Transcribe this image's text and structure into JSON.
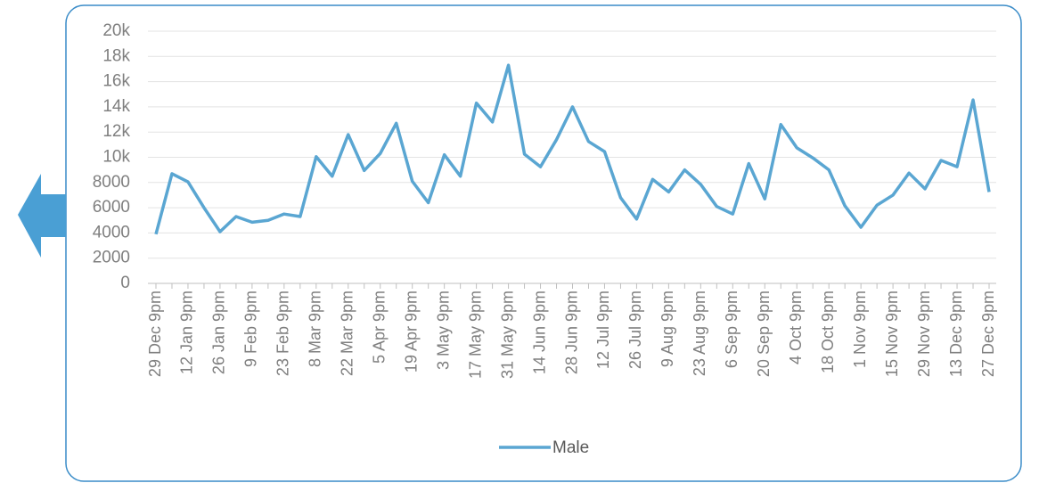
{
  "chart_data": {
    "type": "line",
    "categories": [
      "29 Dec 9pm",
      null,
      "12 Jan 9pm",
      null,
      "26 Jan 9pm",
      null,
      "9 Feb 9pm",
      null,
      "23 Feb 9pm",
      null,
      "8 Mar 9pm",
      null,
      "22 Mar 9pm",
      null,
      "5 Apr 9pm",
      null,
      "19 Apr 9pm",
      null,
      "3 May 9pm",
      null,
      "17 May 9pm",
      null,
      "31 May 9pm",
      null,
      "14 Jun 9pm",
      null,
      "28 Jun 9pm",
      null,
      "12 Jul 9pm",
      null,
      "26 Jul 9pm",
      null,
      "9 Aug 9pm",
      null,
      "23 Aug 9pm",
      null,
      "6 Sep 9pm",
      null,
      "20 Sep 9pm",
      null,
      "4 Oct 9pm",
      null,
      "18 Oct 9pm",
      null,
      "1 Nov 9pm",
      null,
      "15 Nov 9pm",
      null,
      "29 Nov 9pm",
      null,
      "13 Dec 9pm",
      null,
      "27 Dec 9pm"
    ],
    "series": [
      {
        "name": "Male",
        "color": "#5aa6d2",
        "values": [
          3900,
          8700,
          8050,
          6000,
          4100,
          5300,
          4850,
          5000,
          5500,
          5300,
          10050,
          8500,
          11800,
          8950,
          10300,
          12700,
          8100,
          6400,
          10200,
          8500,
          14300,
          12800,
          17300,
          10250,
          9250,
          11400,
          14000,
          11250,
          10450,
          6800,
          5100,
          8250,
          7250,
          9000,
          7850,
          6100,
          5500,
          9500,
          6700,
          12600,
          10750,
          9950,
          9000,
          6150,
          4450,
          6200,
          7000,
          8750,
          7500,
          9750,
          9250,
          14550,
          7250
        ]
      }
    ],
    "ylim": [
      0,
      20000
    ],
    "yticks": [
      0,
      2000,
      4000,
      6000,
      8000,
      {
        "value": 10000,
        "label": "10k"
      },
      {
        "value": 12000,
        "label": "12k"
      },
      {
        "value": 14000,
        "label": "14k"
      },
      {
        "value": 16000,
        "label": "16k"
      },
      {
        "value": 18000,
        "label": "18k"
      },
      {
        "value": 20000,
        "label": "20k"
      }
    ],
    "grid": true,
    "legend": "bottom"
  }
}
